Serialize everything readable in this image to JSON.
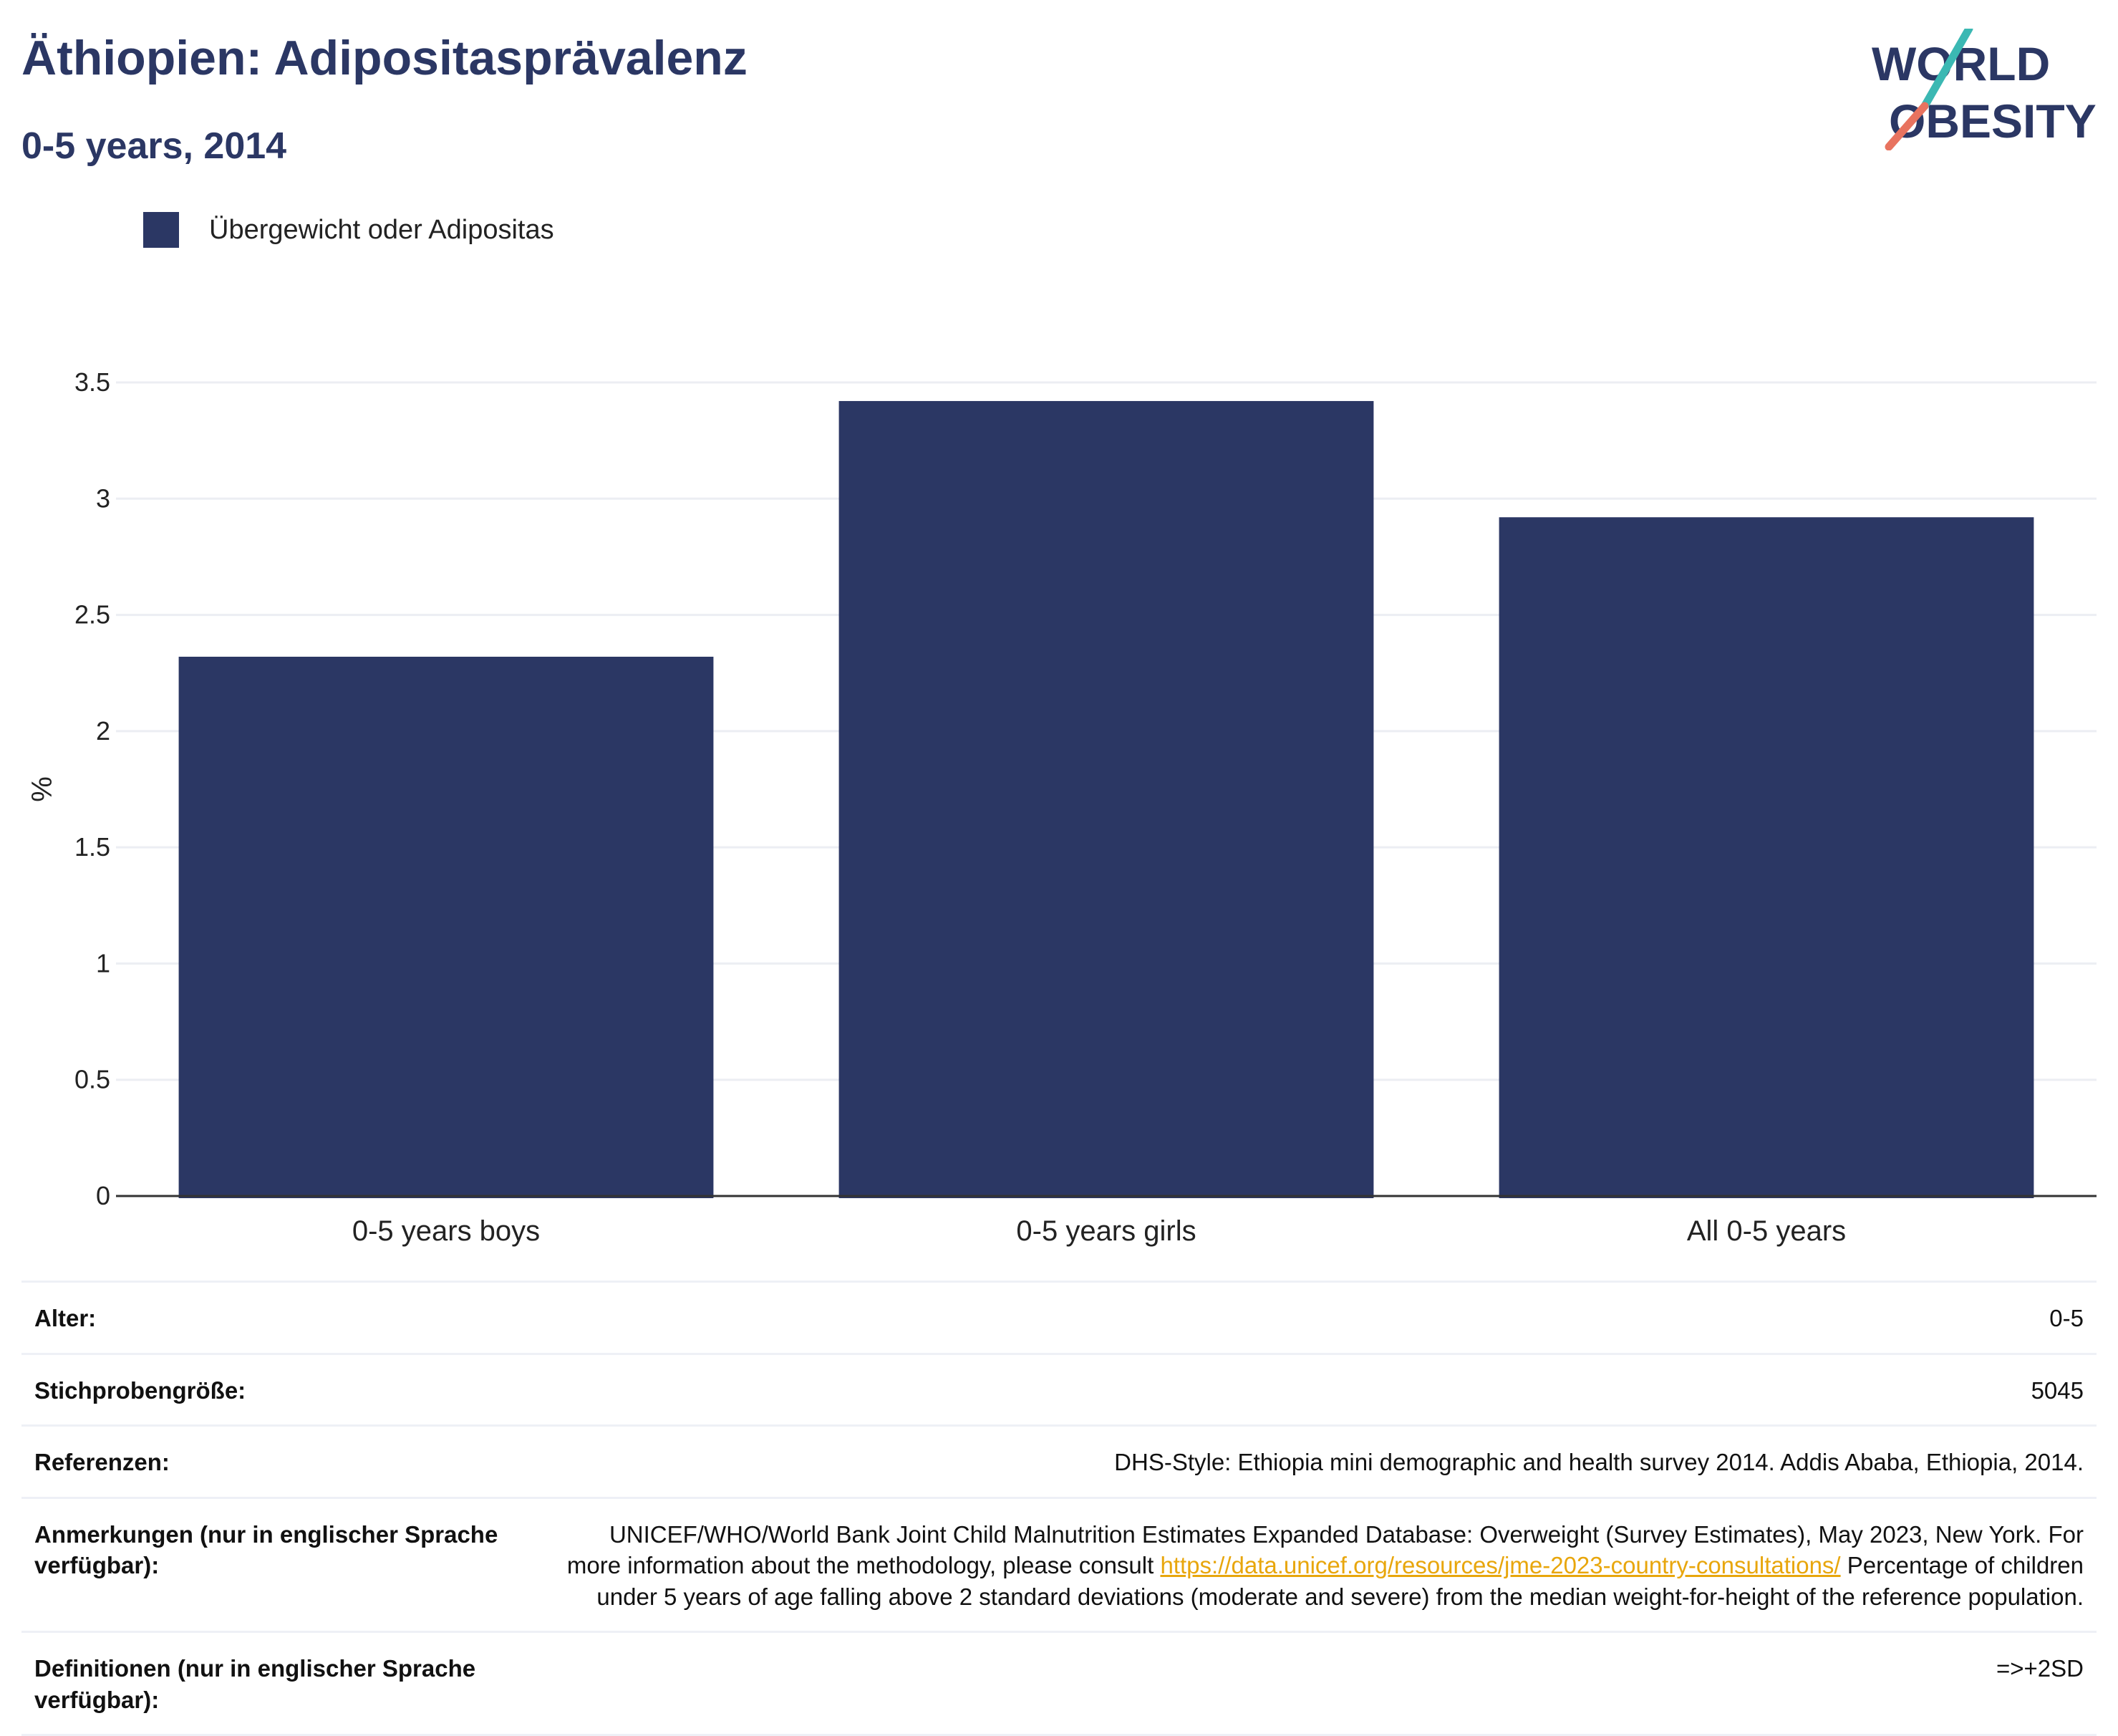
{
  "header": {
    "title": "Äthiopien: Adipositasprävalenz",
    "subtitle": "0-5 years, 2014"
  },
  "logo": {
    "line1": "WORLD",
    "line2": "OBESITY",
    "slash_colors": [
      "#3bb8b3",
      "#e8735f"
    ]
  },
  "colors": {
    "bar": "#2b3764",
    "title": "#2b3764",
    "link": "#e8a60c",
    "gridline": "#eceef3"
  },
  "chart_data": {
    "type": "bar",
    "categories": [
      "0-5 years boys",
      "0-5 years girls",
      "All 0-5 years"
    ],
    "series": [
      {
        "name": "Übergewicht oder Adipositas",
        "values": [
          2.32,
          3.42,
          2.92
        ]
      }
    ],
    "ylabel": "%",
    "ylim": [
      0,
      3.5
    ],
    "yticks": [
      0,
      0.5,
      1,
      1.5,
      2,
      2.5,
      3,
      3.5
    ],
    "ytick_labels": [
      "0",
      "0.5",
      "1",
      "1.5",
      "2",
      "2.5",
      "3",
      "3.5"
    ],
    "grid": true,
    "legend": "top-left"
  },
  "info": {
    "age_key": "Alter:",
    "age_val": "0-5",
    "sample_key": "Stichprobengröße:",
    "sample_val": "5045",
    "ref_key": "Referenzen:",
    "ref_val": "DHS-Style: Ethiopia mini demographic and health survey 2014. Addis Ababa, Ethiopia, 2014.",
    "notes_key": "Anmerkungen (nur in englischer Sprache verfügbar):",
    "notes_val_1": "UNICEF/WHO/World Bank Joint Child Malnutrition Estimates Expanded Database: Overweight (Survey Estimates), May 2023, New York. For more information about the methodology, please consult ",
    "notes_link": "https://data.unicef.org/resources/jme-2023-country-consultations/",
    "notes_val_2": " Percentage of children under 5 years of age falling above 2 standard deviations (moderate and severe) from the median weight-for-height of the reference population.",
    "def_key": "Definitionen (nur in englischer Sprache verfügbar):",
    "def_val": "=>+2SD"
  }
}
